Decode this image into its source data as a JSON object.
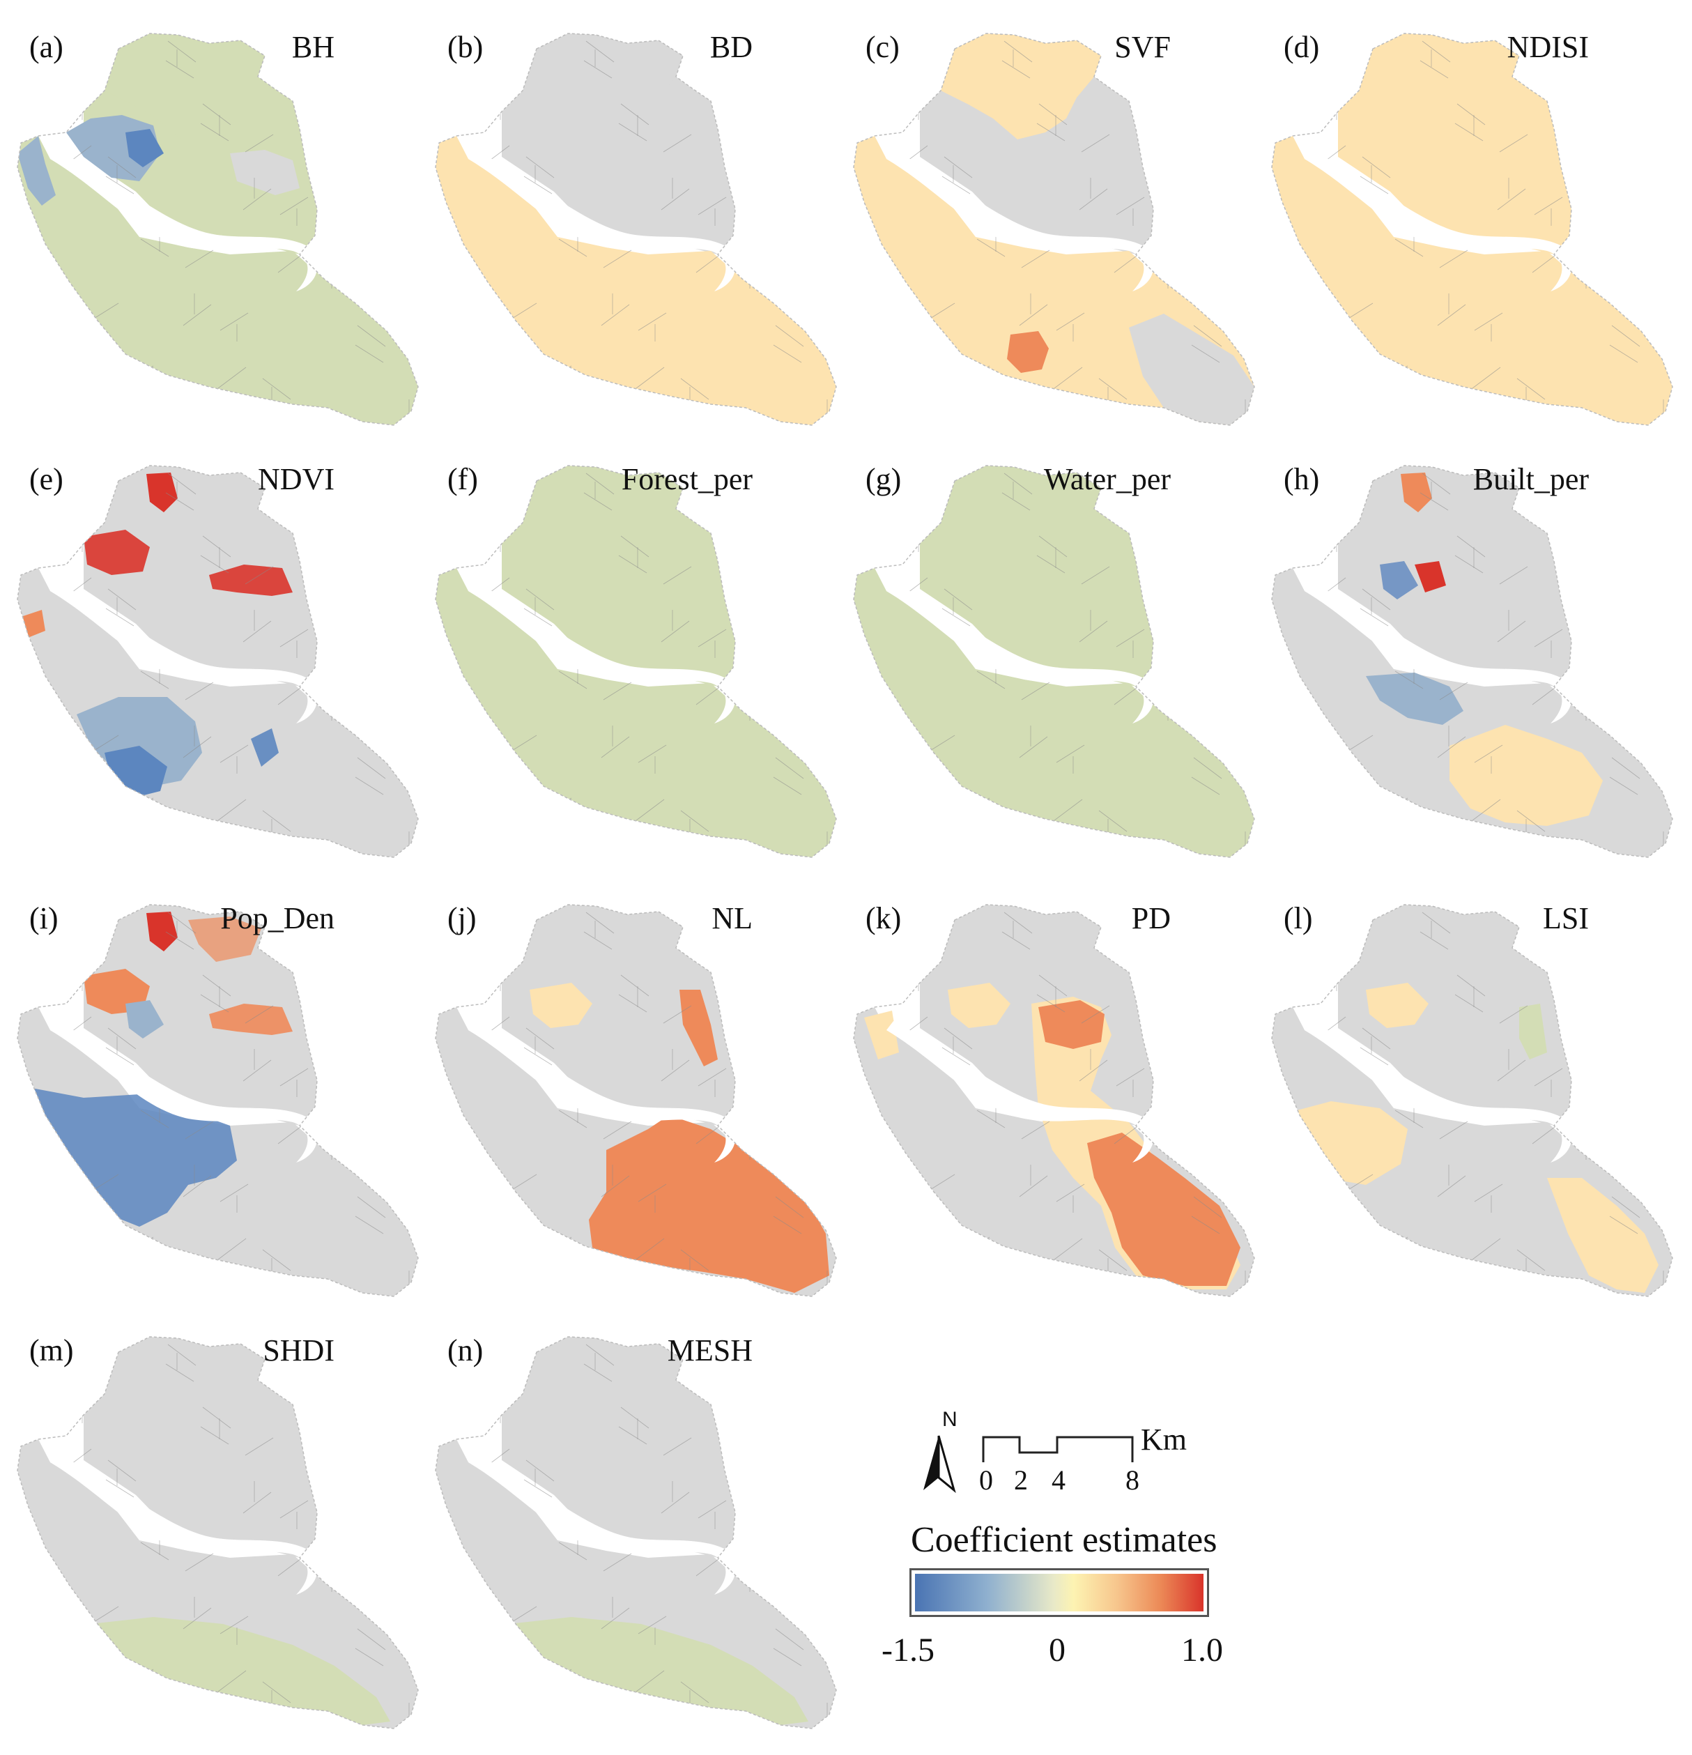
{
  "panels": [
    {
      "letter": "(a)",
      "title": "BH"
    },
    {
      "letter": "(b)",
      "title": "BD"
    },
    {
      "letter": "(c)",
      "title": "SVF"
    },
    {
      "letter": "(d)",
      "title": "NDISI"
    },
    {
      "letter": "(e)",
      "title": "NDVI"
    },
    {
      "letter": "(f)",
      "title": "Forest_per"
    },
    {
      "letter": "(g)",
      "title": "Water_per"
    },
    {
      "letter": "(h)",
      "title": "Built_per"
    },
    {
      "letter": "(i)",
      "title": "Pop_Den"
    },
    {
      "letter": "(j)",
      "title": "NL"
    },
    {
      "letter": "(k)",
      "title": "PD"
    },
    {
      "letter": "(l)",
      "title": "LSI"
    },
    {
      "letter": "(m)",
      "title": "SHDI"
    },
    {
      "letter": "(n)",
      "title": "MESH"
    }
  ],
  "legend": {
    "north_letter": "N",
    "scale_ticks": [
      "0",
      "2",
      "4",
      "8"
    ],
    "scale_unit": "Km",
    "colorbar_title": "Coefficient estimates",
    "colorbar_ticks": [
      "-1.5",
      "0",
      "1.0"
    ],
    "colorbar_min": -1.5,
    "colorbar_max": 1.0
  },
  "colors": {
    "insignificant": "#d9d9d9",
    "green": "#d3ddb5",
    "light_yellow": "#fde3b0",
    "orange": "#ee8a5a",
    "red": "#d9342b",
    "blue": "#5c86bf",
    "pale_blue": "#9ab3cc"
  }
}
